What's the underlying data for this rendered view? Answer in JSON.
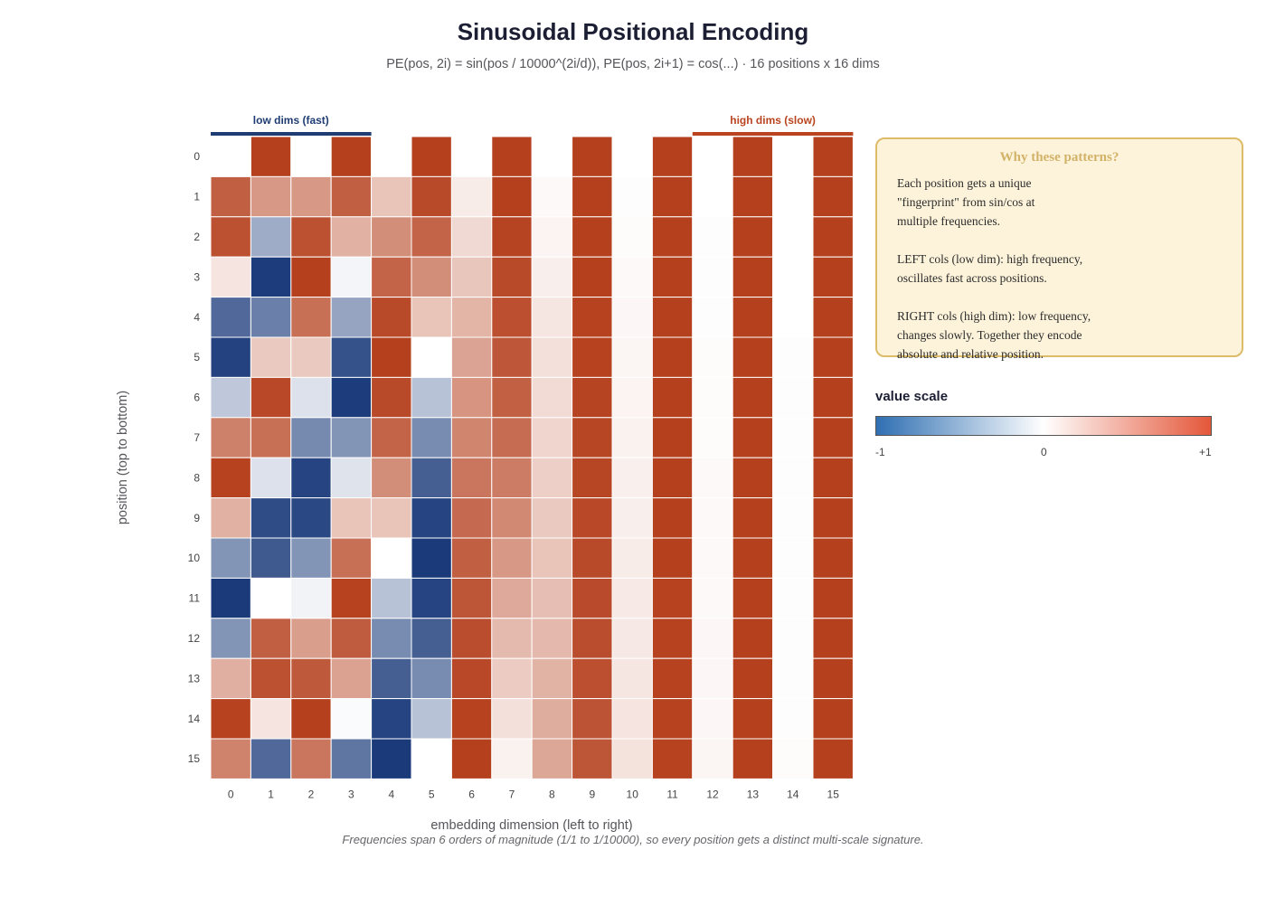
{
  "chart_data": {
    "type": "heatmap",
    "title": "Sinusoidal Positional Encoding",
    "subtitle": "PE(pos, 2i) = sin(pos / 10000^(2i/d)), PE(pos, 2i+1) = cos(...) · 16 positions x 16 dims",
    "xlabel": "embedding dimension (left to right)",
    "ylabel": "position (top to bottom)",
    "x_ticks": [
      "0",
      "1",
      "2",
      "3",
      "4",
      "5",
      "6",
      "7",
      "8",
      "9",
      "10",
      "11",
      "12",
      "13",
      "14",
      "15"
    ],
    "y_ticks": [
      "0",
      "1",
      "2",
      "3",
      "4",
      "5",
      "6",
      "7",
      "8",
      "9",
      "10",
      "11",
      "12",
      "13",
      "14",
      "15"
    ],
    "value_range": [
      -1,
      1
    ],
    "values": [
      [
        0.0,
        1.0,
        0.0,
        1.0,
        0.0,
        1.0,
        0.0,
        1.0,
        0.0,
        1.0,
        0.0,
        1.0,
        0.0,
        1.0,
        0.0,
        1.0
      ],
      [
        0.84,
        0.54,
        0.54,
        0.84,
        0.31,
        0.95,
        0.1,
        1.0,
        0.03,
        1.0,
        0.01,
        1.0,
        0.0,
        1.0,
        0.0,
        1.0
      ],
      [
        0.91,
        -0.42,
        0.91,
        0.41,
        0.59,
        0.81,
        0.2,
        0.98,
        0.06,
        1.0,
        0.02,
        1.0,
        0.01,
        1.0,
        0.0,
        1.0
      ],
      [
        0.14,
        -0.99,
        1.0,
        -0.05,
        0.81,
        0.59,
        0.3,
        0.95,
        0.09,
        1.0,
        0.03,
        1.0,
        0.01,
        1.0,
        0.0,
        1.0
      ],
      [
        -0.76,
        -0.65,
        0.75,
        -0.46,
        0.95,
        0.31,
        0.39,
        0.92,
        0.13,
        0.99,
        0.04,
        1.0,
        0.01,
        1.0,
        0.0,
        1.0
      ],
      [
        -0.96,
        0.28,
        0.28,
        -0.88,
        1.0,
        0.0,
        0.48,
        0.88,
        0.16,
        0.99,
        0.05,
        1.0,
        0.02,
        1.0,
        0.01,
        1.0
      ],
      [
        -0.28,
        0.96,
        -0.15,
        -0.99,
        0.95,
        -0.31,
        0.56,
        0.83,
        0.19,
        0.98,
        0.06,
        1.0,
        0.02,
        1.0,
        0.01,
        1.0
      ],
      [
        0.66,
        0.75,
        -0.6,
        -0.54,
        0.81,
        -0.59,
        0.64,
        0.77,
        0.22,
        0.97,
        0.07,
        1.0,
        0.02,
        1.0,
        0.01,
        1.0
      ],
      [
        0.99,
        -0.15,
        -0.95,
        -0.14,
        0.59,
        -0.81,
        0.72,
        0.69,
        0.25,
        0.97,
        0.08,
        1.0,
        0.03,
        1.0,
        0.01,
        1.0
      ],
      [
        0.41,
        -0.91,
        -0.93,
        0.31,
        0.31,
        -0.95,
        0.78,
        0.62,
        0.28,
        0.96,
        0.09,
        1.0,
        0.03,
        1.0,
        0.01,
        1.0
      ],
      [
        -0.54,
        -0.84,
        -0.54,
        0.75,
        0.0,
        -1.0,
        0.84,
        0.54,
        0.31,
        0.95,
        0.1,
        1.0,
        0.03,
        1.0,
        0.01,
        1.0
      ],
      [
        -1.0,
        0.0,
        -0.06,
        0.99,
        -0.31,
        -0.95,
        0.89,
        0.45,
        0.34,
        0.94,
        0.11,
        0.99,
        0.03,
        1.0,
        0.01,
        1.0
      ],
      [
        -0.54,
        0.84,
        0.51,
        0.86,
        -0.59,
        -0.81,
        0.93,
        0.36,
        0.37,
        0.93,
        0.12,
        0.99,
        0.04,
        1.0,
        0.01,
        1.0
      ],
      [
        0.42,
        0.91,
        0.87,
        0.49,
        -0.81,
        -0.59,
        0.96,
        0.27,
        0.4,
        0.92,
        0.13,
        0.99,
        0.04,
        1.0,
        0.01,
        1.0
      ],
      [
        0.99,
        0.14,
        1.0,
        -0.02,
        -0.95,
        -0.31,
        0.99,
        0.16,
        0.43,
        0.9,
        0.14,
        0.99,
        0.04,
        1.0,
        0.01,
        1.0
      ],
      [
        0.65,
        -0.76,
        0.72,
        -0.7,
        -1.0,
        0.0,
        1.0,
        0.07,
        0.46,
        0.89,
        0.15,
        0.99,
        0.05,
        1.0,
        0.02,
        1.0
      ]
    ],
    "bands": [
      {
        "label": "low dims (fast)",
        "color": "#1f3d73"
      },
      {
        "label": "high dims (slow)",
        "color": "#b9441f"
      }
    ],
    "colorscale": {
      "negative": "#1a3a7a",
      "zero": "#ffffff",
      "positive": "#b5401e"
    }
  },
  "info_box": {
    "title": "Why these patterns?",
    "paragraphs": [
      "Each position gets a unique\n\"fingerprint\" from sin/cos at\nmultiple frequencies.",
      "LEFT cols (low dim): high frequency,\noscillates fast across positions.",
      "RIGHT cols (high dim): low frequency,\nchanges slowly. Together they encode\nabsolute and relative position."
    ]
  },
  "legend": {
    "title": "value scale",
    "ticks": [
      "-1",
      "0",
      "+1"
    ]
  },
  "footnote": "Frequencies span 6 orders of magnitude (1/1 to 1/10000), so every position gets a distinct multi-scale signature."
}
